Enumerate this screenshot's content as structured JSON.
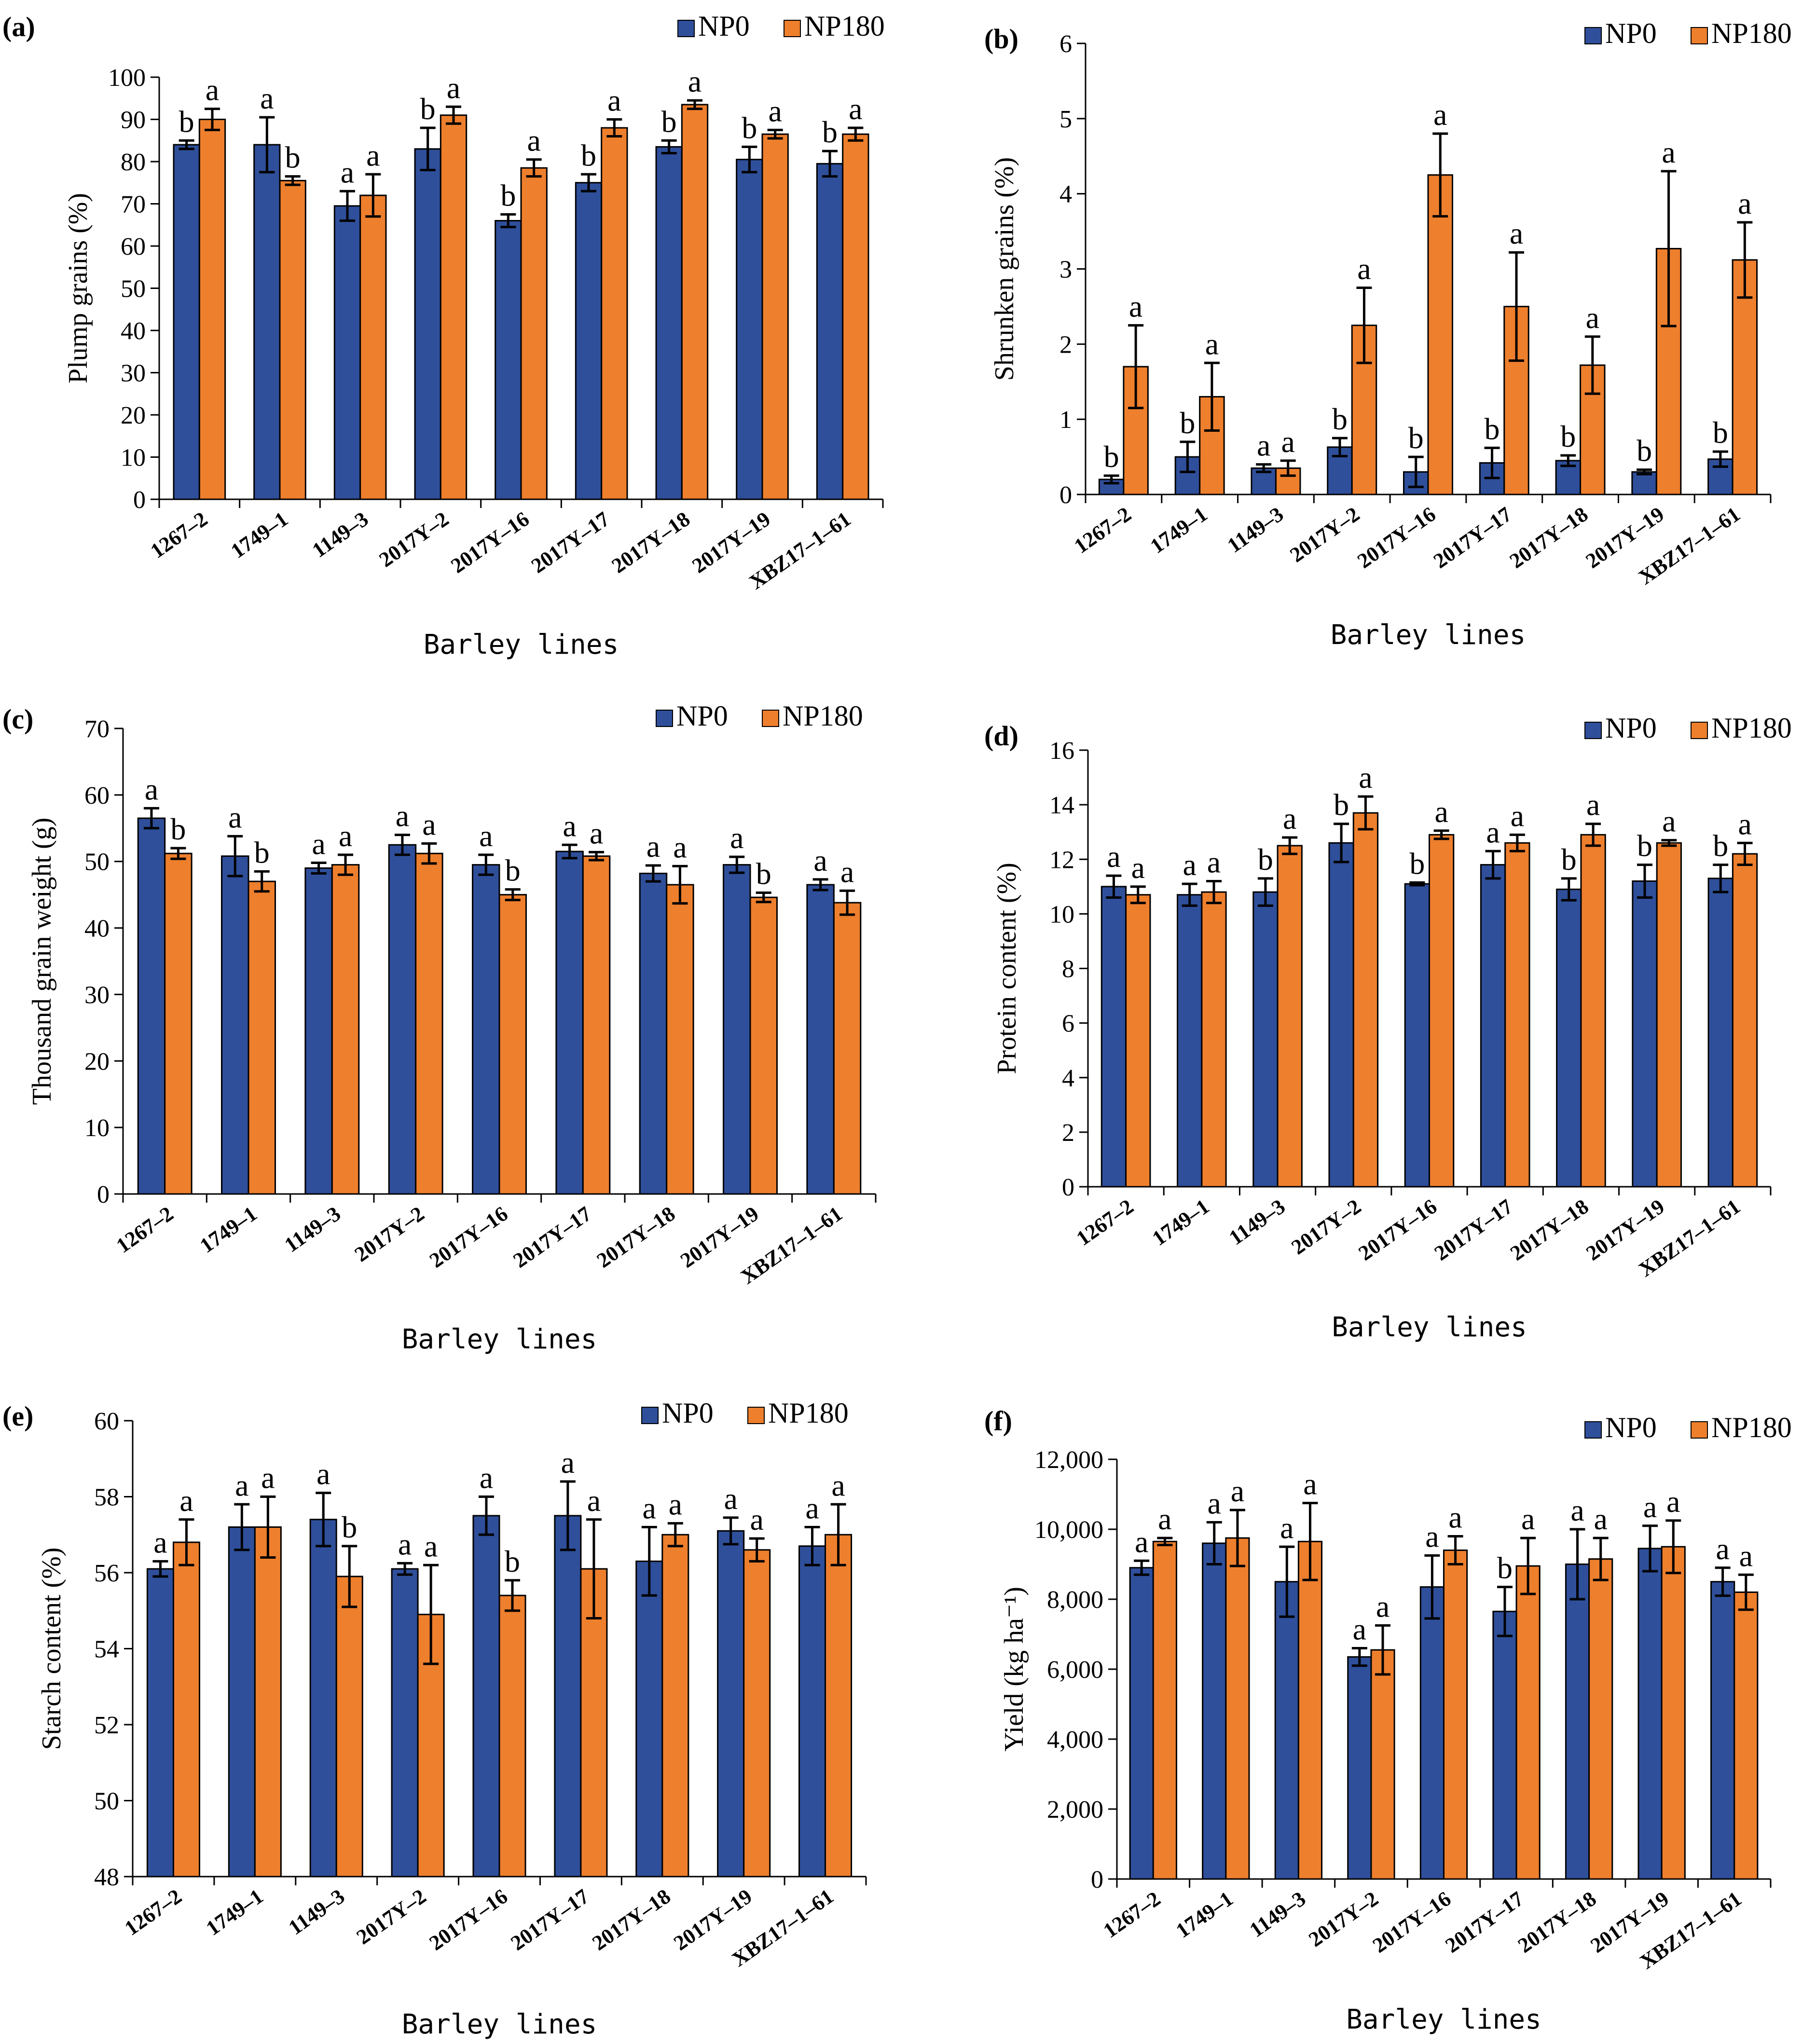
{
  "colors": {
    "NP0": "#2f4f9a",
    "NP180": "#ee7f2d"
  },
  "legend": [
    "NP0",
    "NP180"
  ],
  "chart_data": [
    {
      "panel": "(a)",
      "type": "bar",
      "categories": [
        "1267–2",
        "1749–1",
        "1149–3",
        "2017Y–2",
        "2017Y–16",
        "2017Y–17",
        "2017Y–18",
        "2017Y–19",
        "XBZ17–1–61"
      ],
      "xlabel": "Barley lines",
      "ylabel": "Plump grains (%)",
      "ylim": [
        0,
        100
      ],
      "ystep": 10,
      "yticks": [
        "0",
        "10",
        "20",
        "30",
        "40",
        "50",
        "60",
        "70",
        "80",
        "90",
        "100"
      ],
      "series": [
        {
          "name": "NP0",
          "values": [
            84,
            84,
            69.5,
            83,
            66,
            75,
            83.5,
            80.5,
            79.5
          ],
          "errors": [
            1,
            6.5,
            3.5,
            5,
            1.5,
            2,
            1.5,
            3,
            3
          ],
          "letters": [
            "b",
            "a",
            "a",
            "b",
            "b",
            "b",
            "b",
            "b",
            "b"
          ]
        },
        {
          "name": "NP180",
          "values": [
            90,
            75.5,
            72,
            91,
            78.5,
            88,
            93.5,
            86.5,
            86.5
          ],
          "errors": [
            2.5,
            1,
            5,
            2,
            2,
            2,
            1,
            1,
            1.5
          ],
          "letters": [
            "a",
            "b",
            "a",
            "a",
            "a",
            "a",
            "a",
            "a",
            "a"
          ]
        }
      ]
    },
    {
      "panel": "(b)",
      "type": "bar",
      "categories": [
        "1267–2",
        "1749–1",
        "1149–3",
        "2017Y–2",
        "2017Y–16",
        "2017Y–17",
        "2017Y–18",
        "2017Y–19",
        "XBZ17–1–61"
      ],
      "xlabel": "Barley lines",
      "ylabel": "Shrunken grains (%)",
      "ylim": [
        0,
        6
      ],
      "ystep": 1,
      "yticks": [
        "0",
        "1",
        "2",
        "3",
        "4",
        "5",
        "6"
      ],
      "series": [
        {
          "name": "NP0",
          "values": [
            0.2,
            0.5,
            0.35,
            0.63,
            0.3,
            0.42,
            0.45,
            0.3,
            0.47
          ],
          "errors": [
            0.05,
            0.2,
            0.05,
            0.12,
            0.2,
            0.2,
            0.07,
            0.03,
            0.1
          ],
          "letters": [
            "b",
            "b",
            "a",
            "b",
            "b",
            "b",
            "b",
            "b",
            "b"
          ]
        },
        {
          "name": "NP180",
          "values": [
            1.7,
            1.3,
            0.35,
            2.25,
            4.25,
            2.5,
            1.72,
            3.27,
            3.12
          ],
          "errors": [
            0.55,
            0.45,
            0.1,
            0.5,
            0.55,
            0.72,
            0.38,
            1.03,
            0.5
          ],
          "letters": [
            "a",
            "a",
            "a",
            "a",
            "a",
            "a",
            "a",
            "a",
            "a"
          ]
        }
      ]
    },
    {
      "panel": "(c)",
      "type": "bar",
      "categories": [
        "1267–2",
        "1749–1",
        "1149–3",
        "2017Y–2",
        "2017Y–16",
        "2017Y–17",
        "2017Y–18",
        "2017Y–19",
        "XBZ17–1–61"
      ],
      "xlabel": "Barley lines",
      "ylabel": "Thousand grain weight (g)",
      "ylim": [
        0,
        70
      ],
      "ystep": 10,
      "yticks": [
        "0",
        "10",
        "20",
        "30",
        "40",
        "50",
        "60",
        "70"
      ],
      "series": [
        {
          "name": "NP0",
          "values": [
            56.5,
            50.8,
            49,
            52.5,
            49.5,
            51.5,
            48.2,
            49.5,
            46.5
          ],
          "errors": [
            1.5,
            3,
            0.8,
            1.5,
            1.5,
            1,
            1.2,
            1.2,
            0.8
          ],
          "letters": [
            "a",
            "a",
            "a",
            "a",
            "a",
            "a",
            "a",
            "a",
            "a"
          ]
        },
        {
          "name": "NP180",
          "values": [
            51.2,
            47,
            49.5,
            51.2,
            45,
            50.8,
            46.5,
            44.6,
            43.8
          ],
          "errors": [
            0.8,
            1.5,
            1.5,
            1.5,
            0.8,
            0.6,
            2.8,
            0.7,
            1.8
          ],
          "letters": [
            "b",
            "b",
            "a",
            "a",
            "b",
            "a",
            "a",
            "b",
            "a"
          ]
        }
      ]
    },
    {
      "panel": "(d)",
      "type": "bar",
      "categories": [
        "1267–2",
        "1749–1",
        "1149–3",
        "2017Y–2",
        "2017Y–16",
        "2017Y–17",
        "2017Y–18",
        "2017Y–19",
        "XBZ17–1–61"
      ],
      "xlabel": "Barley lines",
      "ylabel": "Protein content (%)",
      "ylim": [
        0,
        16
      ],
      "ystep": 2,
      "yticks": [
        "0",
        "2",
        "4",
        "6",
        "8",
        "10",
        "12",
        "14",
        "16"
      ],
      "series": [
        {
          "name": "NP0",
          "values": [
            11,
            10.7,
            10.8,
            12.6,
            11.1,
            11.8,
            10.9,
            11.2,
            11.3
          ],
          "errors": [
            0.4,
            0.4,
            0.5,
            0.7,
            0.05,
            0.5,
            0.4,
            0.6,
            0.5
          ],
          "letters": [
            "a",
            "a",
            "b",
            "b",
            "b",
            "a",
            "b",
            "b",
            "b"
          ]
        },
        {
          "name": "NP180",
          "values": [
            10.7,
            10.8,
            12.5,
            13.7,
            12.9,
            12.6,
            12.9,
            12.6,
            12.2
          ],
          "errors": [
            0.3,
            0.4,
            0.3,
            0.6,
            0.15,
            0.3,
            0.4,
            0.1,
            0.4
          ],
          "letters": [
            "a",
            "a",
            "a",
            "a",
            "a",
            "a",
            "a",
            "a",
            "a"
          ]
        }
      ]
    },
    {
      "panel": "(e)",
      "type": "bar",
      "categories": [
        "1267–2",
        "1749–1",
        "1149–3",
        "2017Y–2",
        "2017Y–16",
        "2017Y–17",
        "2017Y–18",
        "2017Y–19",
        "XBZ17–1–61"
      ],
      "xlabel": "Barley lines",
      "ylabel": "Starch content (%)",
      "ylim": [
        48,
        60
      ],
      "ystep": 2,
      "yticks": [
        "48",
        "50",
        "52",
        "54",
        "56",
        "58",
        "60"
      ],
      "series": [
        {
          "name": "NP0",
          "values": [
            56.1,
            57.2,
            57.4,
            56.1,
            57.5,
            57.5,
            56.3,
            57.1,
            56.7
          ],
          "errors": [
            0.2,
            0.6,
            0.7,
            0.15,
            0.5,
            0.9,
            0.9,
            0.35,
            0.5
          ],
          "letters": [
            "a",
            "a",
            "a",
            "a",
            "a",
            "a",
            "a",
            "a",
            "a"
          ]
        },
        {
          "name": "NP180",
          "values": [
            56.8,
            57.2,
            55.9,
            54.9,
            55.4,
            56.1,
            57.0,
            56.6,
            57.0
          ],
          "errors": [
            0.6,
            0.8,
            0.8,
            1.3,
            0.4,
            1.3,
            0.3,
            0.3,
            0.8
          ],
          "letters": [
            "a",
            "a",
            "b",
            "a",
            "b",
            "a",
            "a",
            "a",
            "a"
          ]
        }
      ]
    },
    {
      "panel": "(f)",
      "type": "bar",
      "categories": [
        "1267–2",
        "1749–1",
        "1149–3",
        "2017Y–2",
        "2017Y–16",
        "2017Y–17",
        "2017Y–18",
        "2017Y–19",
        "XBZ17–1–61"
      ],
      "xlabel": "Barley lines",
      "ylabel": "Yield (kg ha⁻¹)",
      "ylim": [
        0,
        12000
      ],
      "ystep": 2000,
      "yticks": [
        "0",
        "2,000",
        "4,000",
        "6,000",
        "8,000",
        "10,000",
        "12,000"
      ],
      "series": [
        {
          "name": "NP0",
          "values": [
            8900,
            9600,
            8500,
            6350,
            8350,
            7650,
            9000,
            9450,
            8500
          ],
          "errors": [
            200,
            600,
            1000,
            250,
            900,
            700,
            1000,
            650,
            400
          ],
          "letters": [
            "a",
            "a",
            "a",
            "a",
            "a",
            "b",
            "a",
            "a",
            "a"
          ]
        },
        {
          "name": "NP180",
          "values": [
            9650,
            9750,
            9650,
            6550,
            9400,
            8950,
            9150,
            9500,
            8200
          ],
          "errors": [
            100,
            800,
            1100,
            700,
            400,
            800,
            600,
            750,
            500
          ],
          "letters": [
            "a",
            "a",
            "a",
            "a",
            "a",
            "a",
            "a",
            "a",
            "a"
          ]
        }
      ]
    }
  ]
}
